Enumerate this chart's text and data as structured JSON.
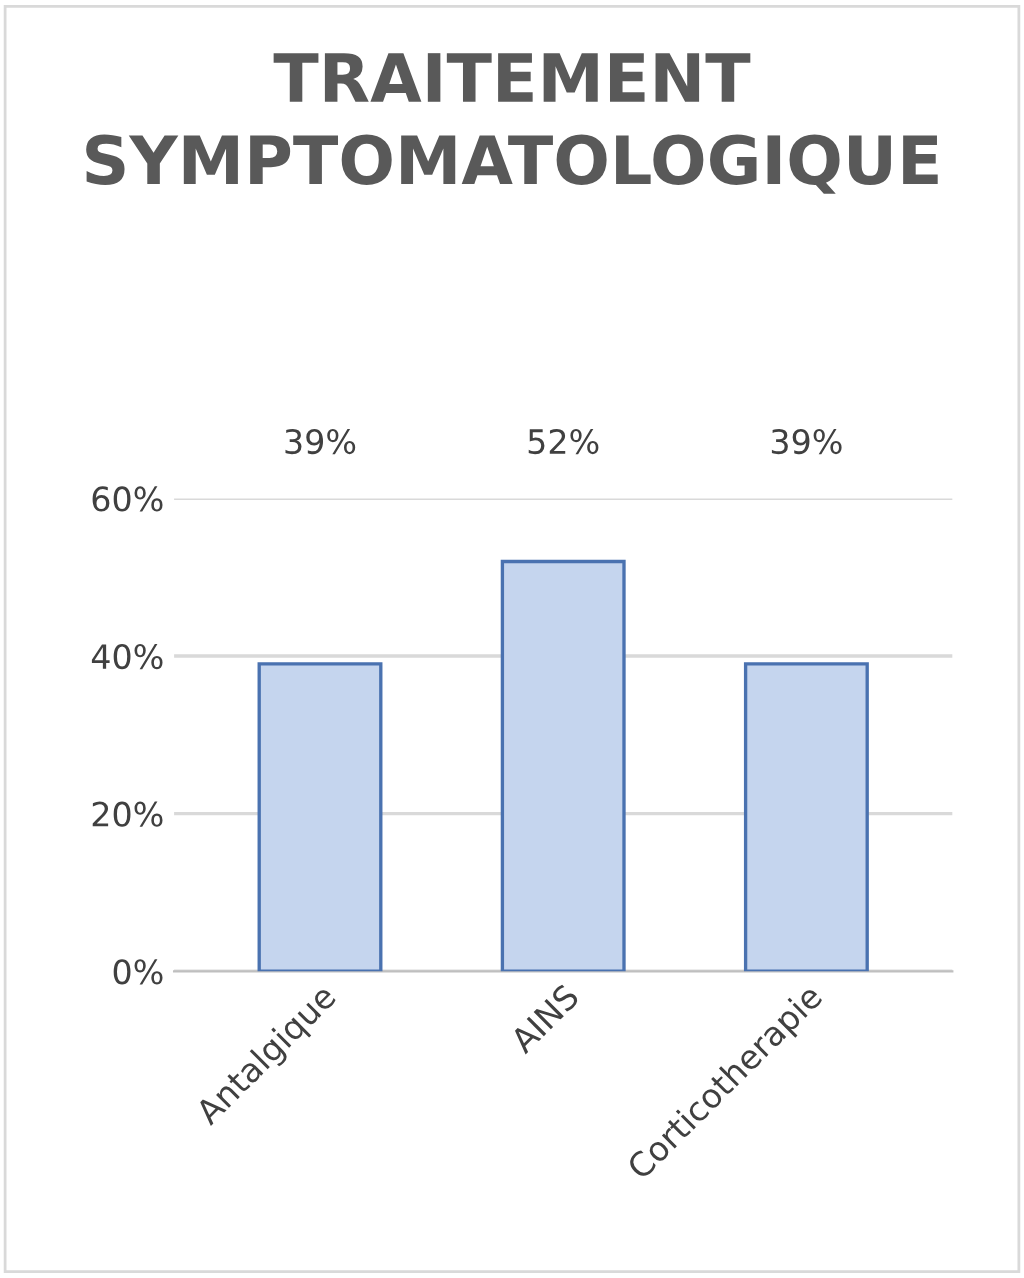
{
  "chart_data": {
    "type": "bar",
    "title": "TRAITEMENT SYMPTOMATOLOGIQUE",
    "categories": [
      "Antalgique",
      "AINS",
      "Corticotherapie"
    ],
    "values": [
      39,
      52,
      39
    ],
    "color": "#c5d5ee",
    "value_labels": [
      "39%",
      "52%",
      "39%"
    ],
    "ylim": [
      0,
      60
    ],
    "yticks": [
      {
        "value": 0,
        "label": "0%"
      },
      {
        "value": 20,
        "label": "20%"
      },
      {
        "value": 40,
        "label": "40%"
      },
      {
        "value": 60,
        "label": "60%"
      }
    ],
    "grid": "y",
    "legend": false
  }
}
